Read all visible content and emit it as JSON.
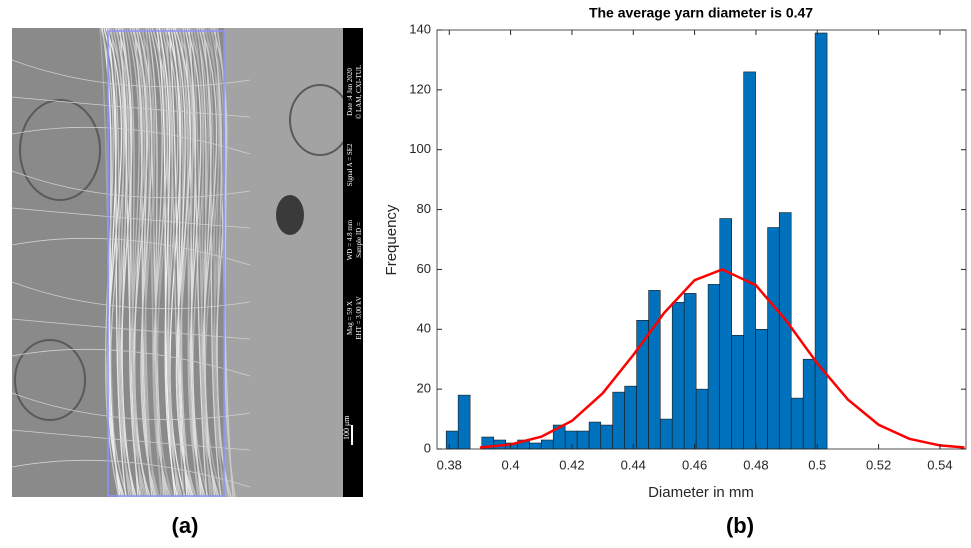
{
  "chart_data": {
    "type": "histogram",
    "title": "The average yarn diameter is 0.47",
    "xlabel": "Diameter in mm",
    "ylabel": "Frequency",
    "bins": [
      0.379,
      0.3829,
      0.3868,
      0.3906,
      0.3945,
      0.3984,
      0.4023,
      0.4062,
      0.41,
      0.4139,
      0.4178,
      0.4217,
      0.4256,
      0.4294,
      0.4333,
      0.4372,
      0.4411,
      0.445,
      0.4488,
      0.4527,
      0.4566,
      0.4605,
      0.4644,
      0.4682,
      0.4721,
      0.476,
      0.4799,
      0.4838,
      0.4876,
      0.4915,
      0.4954,
      0.4993,
      0.5032
    ],
    "values": [
      6,
      18,
      0,
      4,
      3,
      2,
      3,
      2,
      3,
      8,
      6,
      6,
      9,
      8,
      19,
      21,
      43,
      53,
      10,
      49,
      52,
      20,
      55,
      77,
      38,
      126,
      40,
      74,
      79,
      17,
      30,
      139
    ],
    "color": "#0072bd",
    "edgecolor": "#1a1a1a",
    "fit": {
      "type": "line",
      "color": "#ff0000",
      "x": [
        0.39,
        0.4,
        0.41,
        0.42,
        0.43,
        0.44,
        0.45,
        0.46,
        0.469,
        0.48,
        0.49,
        0.5,
        0.51,
        0.52,
        0.53,
        0.54,
        0.548
      ],
      "values": [
        0.5,
        1.5,
        4.1,
        9.4,
        18.6,
        31.4,
        45.4,
        56.4,
        60,
        54.7,
        42.7,
        28.6,
        16.5,
        8.1,
        3.4,
        1.2,
        0.5
      ]
    },
    "xlim": [
      0.376,
      0.5485
    ],
    "xticks": [
      0.38,
      0.4,
      0.42,
      0.44,
      0.46,
      0.48,
      0.5,
      0.52,
      0.54
    ],
    "ylim": [
      0,
      140
    ],
    "yticks": [
      0,
      20,
      40,
      60,
      80,
      100,
      120,
      140
    ],
    "grid": false
  },
  "panels": {
    "a": "(a)",
    "b": "(b)"
  },
  "sem_image": {
    "info": [
      "Date :4 Jun 2020",
      "© LAM, CXI-TUL",
      "Signal A = SE2",
      "WD = 4.8 mm",
      "Sample ID =",
      "Mag = 59 X",
      "EHT = 3.00 kV"
    ],
    "scale_bar": "100 μm"
  }
}
